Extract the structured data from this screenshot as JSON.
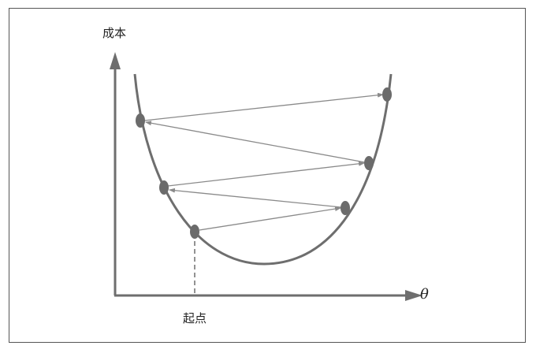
{
  "axes": {
    "y_label": "成本",
    "x_label": "θ"
  },
  "annotations": {
    "start_label": "起点"
  },
  "colors": {
    "curve": "#6e6e6e",
    "axis": "#6e6e6e",
    "point_fill": "#6b6b6b",
    "arrow": "#8a8a8a",
    "frame": "#555555",
    "text": "#222222"
  },
  "points": [
    "start",
    "step-1",
    "step-2",
    "step-3",
    "step-4",
    "step-5"
  ]
}
